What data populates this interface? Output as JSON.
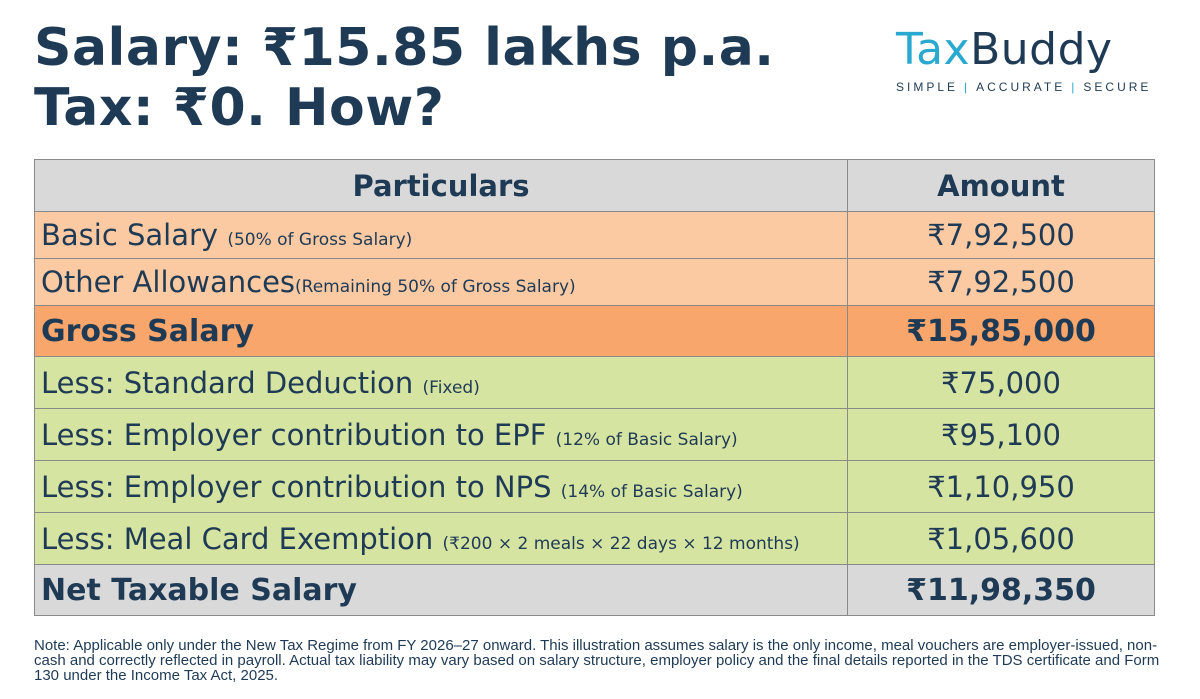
{
  "headline": {
    "line1": "Salary: ₹15.85 lakhs p.a.",
    "line2": "Tax: ₹0. How?"
  },
  "logo": {
    "word_tax": "Tax",
    "word_buddy": "Buddy",
    "tagline": [
      "SIMPLE",
      "ACCURATE",
      "SECURE"
    ],
    "separator": "|",
    "colors": {
      "tax": "#29a9cf",
      "buddy": "#1f3a55"
    }
  },
  "table": {
    "headers": {
      "particulars": "Particulars",
      "amount": "Amount"
    },
    "rows": [
      {
        "label": "Basic Salary",
        "note": "(50% of Gross Salary)",
        "amount": "₹7,92,500",
        "style": "orange"
      },
      {
        "label": "Other Allowances",
        "note": "(Remaining 50% of Gross Salary)",
        "amount": "₹7,92,500",
        "style": "orange"
      },
      {
        "label": "Gross Salary",
        "note": "",
        "amount": "₹15,85,000",
        "style": "gross"
      },
      {
        "label": "Less: Standard Deduction",
        "note": "(Fixed)",
        "amount": "₹75,000",
        "style": "green"
      },
      {
        "label": "Less: Employer contribution to EPF",
        "note": "(12% of Basic Salary)",
        "amount": "₹95,100",
        "style": "green"
      },
      {
        "label": "Less: Employer contribution to NPS",
        "note": "(14% of Basic Salary)",
        "amount": "₹1,10,950",
        "style": "green"
      },
      {
        "label": "Less: Meal Card Exemption",
        "note": "(₹200 × 2 meals × 22 days × 12 months)",
        "amount": "₹1,05,600",
        "style": "green"
      },
      {
        "label": "Net Taxable Salary",
        "note": "",
        "amount": "₹11,98,350",
        "style": "net"
      }
    ],
    "colors": {
      "header": "#d9d9d9",
      "orange": "#fbcaa3",
      "gross": "#f8a66c",
      "green": "#d6e4a2",
      "net": "#d9d9d9"
    }
  },
  "note": "Note: Applicable only under the New Tax Regime from FY 2026–27 onward. This illustration assumes salary is the only income, meal vouchers are employer-issued, non-cash and correctly reflected in payroll. Actual tax liability may vary based on salary structure, employer policy and the final details reported in the TDS certificate and Form 130 under the Income Tax Act, 2025."
}
